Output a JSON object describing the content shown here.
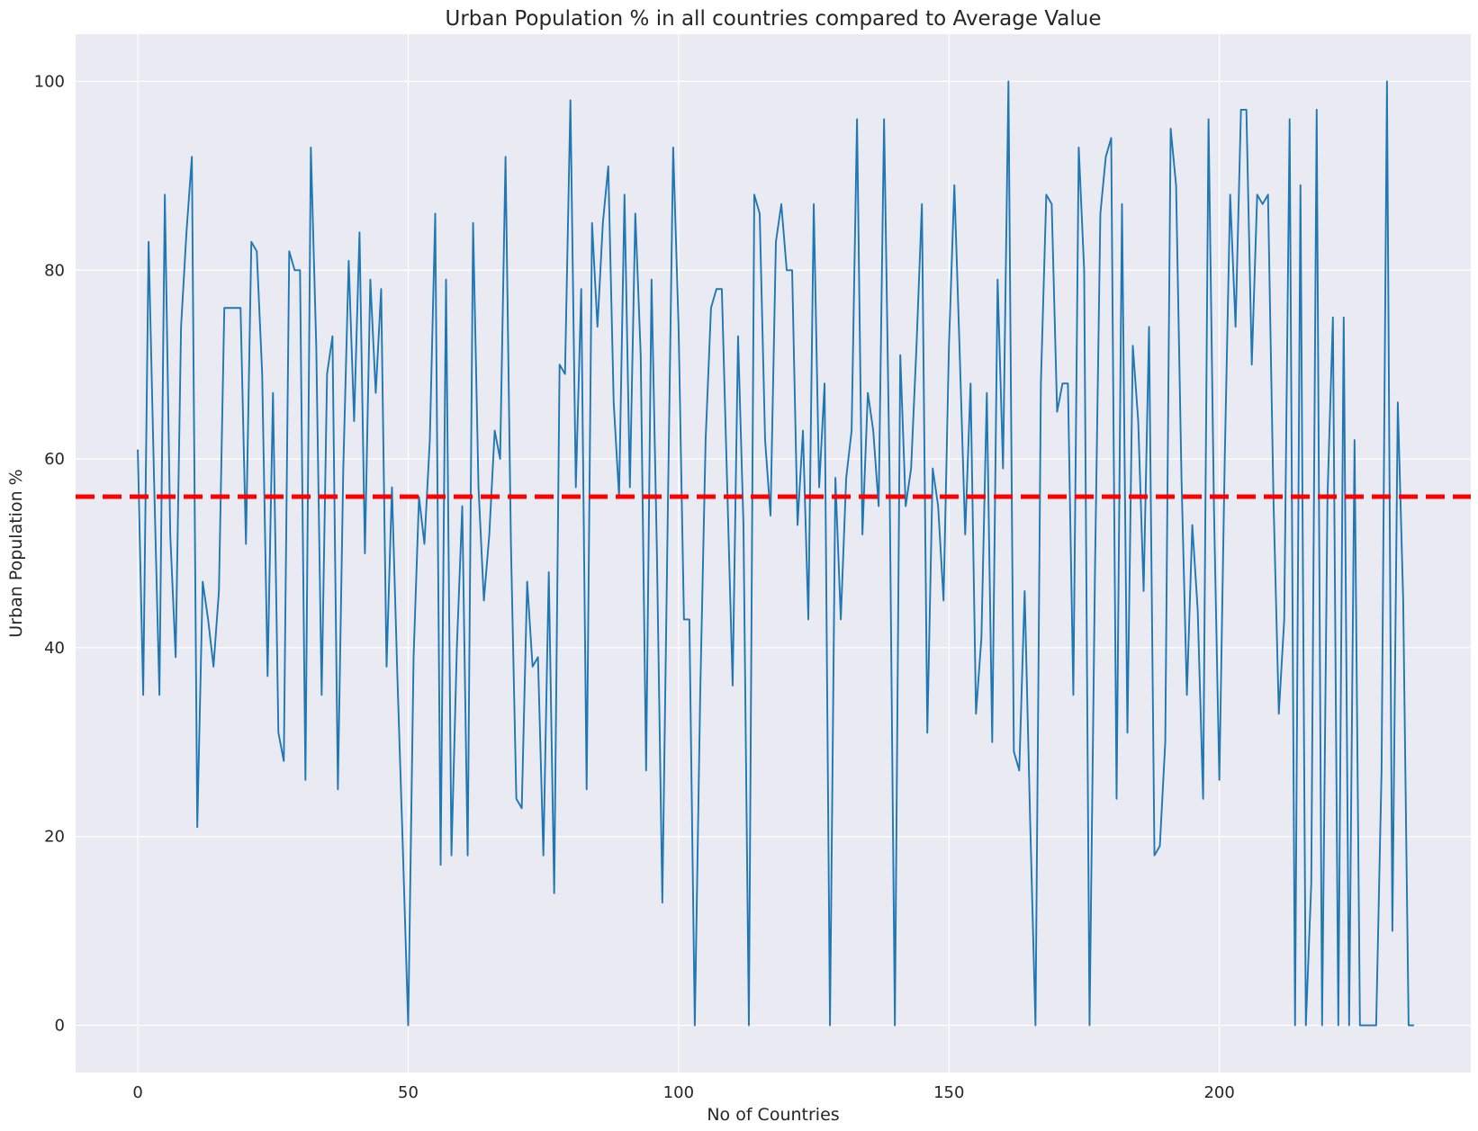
{
  "chart_data": {
    "type": "line",
    "title": "Urban Population % in all countries compared to Average Value",
    "xlabel": "No of Countries",
    "ylabel": "Urban Population %",
    "xlim": [
      -11.5,
      246.5
    ],
    "ylim": [
      -5,
      105
    ],
    "xticks": [
      0,
      50,
      100,
      150,
      200
    ],
    "yticks": [
      0,
      20,
      40,
      60,
      80,
      100
    ],
    "grid": true,
    "background_color": "#eaeaf2",
    "series": [
      {
        "color": "#1f77b4",
        "x_start": 0,
        "values": [
          61,
          35,
          83,
          58,
          35,
          88,
          52,
          39,
          74,
          84,
          92,
          21,
          47,
          43,
          38,
          46,
          76,
          76,
          76,
          76,
          51,
          83,
          82,
          69,
          37,
          67,
          31,
          28,
          82,
          80,
          80,
          26,
          93,
          72,
          35,
          69,
          73,
          25,
          59,
          81,
          64,
          84,
          50,
          79,
          67,
          78,
          38,
          57,
          37,
          19,
          0,
          39,
          56,
          51,
          62,
          86,
          17,
          79,
          18,
          40,
          55,
          18,
          85,
          57,
          45,
          52,
          63,
          60,
          92,
          51,
          24,
          23,
          47,
          38,
          39,
          18,
          48,
          14,
          70,
          69,
          98,
          57,
          78,
          25,
          85,
          74,
          85,
          91,
          66,
          56,
          88,
          57,
          86,
          71,
          27,
          79,
          50,
          13,
          54,
          93,
          74,
          43,
          43,
          0,
          35,
          62,
          76,
          78,
          78,
          57,
          36,
          73,
          53,
          0,
          88,
          86,
          62,
          54,
          83,
          87,
          80,
          80,
          53,
          63,
          43,
          87,
          57,
          68,
          0,
          58,
          43,
          58,
          63,
          96,
          52,
          67,
          63,
          55,
          96,
          59,
          0,
          71,
          55,
          59,
          72,
          87,
          31,
          59,
          55,
          45,
          72,
          89,
          71,
          52,
          68,
          33,
          41,
          67,
          30,
          79,
          59,
          100,
          29,
          27,
          46,
          22,
          0,
          68,
          88,
          87,
          65,
          68,
          68,
          35,
          93,
          80,
          0,
          48,
          86,
          92,
          94,
          24,
          87,
          31,
          72,
          64,
          46,
          74,
          18,
          19,
          30,
          95,
          89,
          58,
          35,
          53,
          44,
          24,
          96,
          55,
          26,
          60,
          88,
          74,
          97,
          97,
          70,
          88,
          87,
          88,
          56,
          33,
          43,
          96,
          0,
          89,
          0,
          15,
          97,
          0,
          56,
          75,
          0,
          75,
          0,
          62,
          0,
          0,
          0,
          0,
          27,
          100,
          10,
          66,
          45,
          0,
          0
        ]
      }
    ],
    "reference_line": {
      "value": 56,
      "color": "#ff0000",
      "style": "dashed"
    }
  }
}
